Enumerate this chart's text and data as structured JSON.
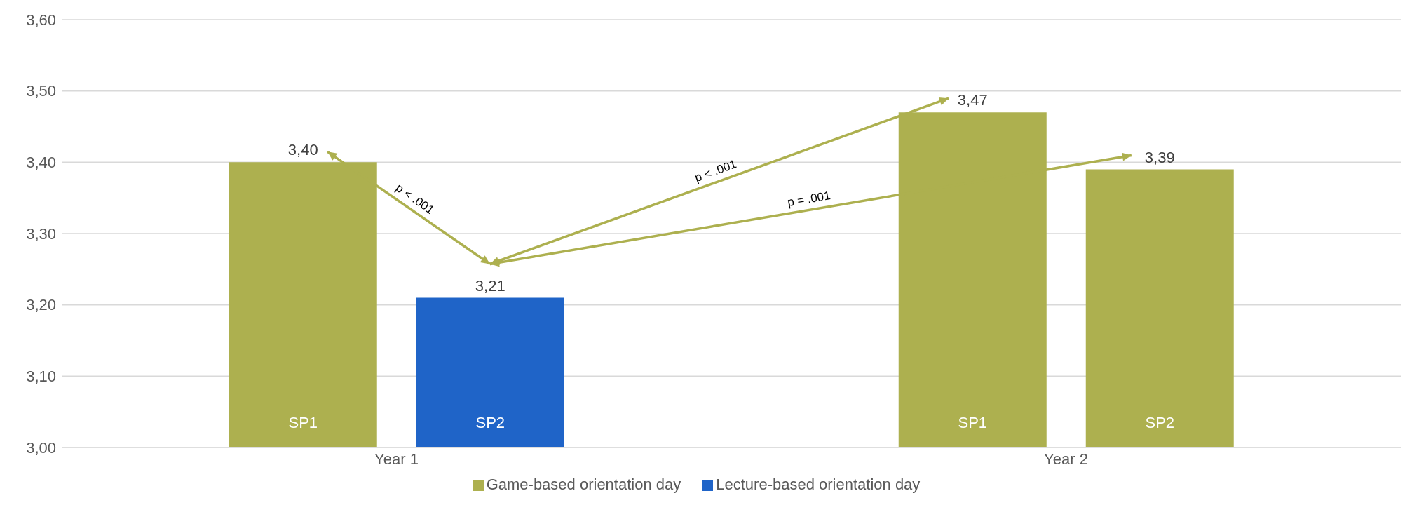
{
  "chart_data": {
    "type": "bar",
    "categories": [
      "Year 1",
      "Year 2"
    ],
    "series": [
      {
        "name": "Game-based orientation day",
        "color": "#adb04f",
        "values": [
          3.4,
          3.47
        ],
        "value_labels": [
          "3,40",
          "3,47"
        ]
      },
      {
        "name": "Lecture-based orientation day",
        "color": "#1f64c8",
        "colors": [
          "#1f64c8",
          "#adb04f"
        ],
        "values": [
          3.21,
          3.39
        ],
        "value_labels": [
          "3,21",
          "3,39"
        ]
      }
    ],
    "ylim": [
      3,
      3.6
    ],
    "yticks": [
      {
        "value": 3,
        "label": "3,00"
      },
      {
        "value": 3.1,
        "label": "3,10"
      },
      {
        "value": 3.2,
        "label": "3,20"
      },
      {
        "value": 3.3,
        "label": "3,30"
      },
      {
        "value": 3.4,
        "label": "3,40"
      },
      {
        "value": 3.5,
        "label": "3,50"
      },
      {
        "value": 3.6,
        "label": "3,60"
      }
    ],
    "grid": "y",
    "legend": "bottom",
    "annotations": [
      "SP1",
      "SP2",
      "SP1",
      "SP2",
      "p < .001",
      "p < .001",
      "p = .001"
    ]
  }
}
